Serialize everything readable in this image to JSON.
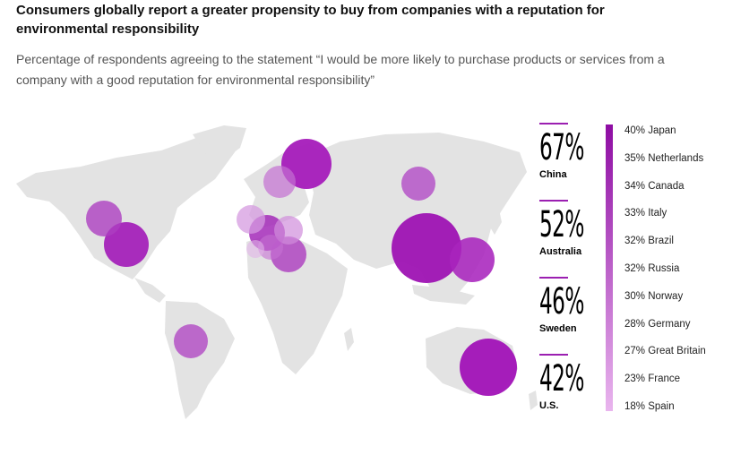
{
  "title": "Consumers globally report a greater propensity to buy from companies with a reputation for environmental responsibility",
  "subtitle": "Percentage of respondents agreeing to the statement “I would be more likely to purchase products or services from a company with a good reputation for environmental responsibility”",
  "highlights": [
    {
      "pct": "67%",
      "country": "China"
    },
    {
      "pct": "52%",
      "country": "Australia"
    },
    {
      "pct": "46%",
      "country": "Sweden"
    },
    {
      "pct": "42%",
      "country": "U.S."
    }
  ],
  "chart_data": {
    "type": "bubble-map",
    "categories": [
      "China",
      "Australia",
      "Sweden",
      "U.S.",
      "Japan",
      "Netherlands",
      "Canada",
      "Italy",
      "Brazil",
      "Russia",
      "Norway",
      "Germany",
      "Great Britain",
      "France",
      "Spain"
    ],
    "values": [
      67,
      52,
      46,
      42,
      40,
      35,
      34,
      33,
      32,
      32,
      30,
      28,
      27,
      23,
      18
    ],
    "legend_entries": [
      "40% Japan",
      "35% Netherlands",
      "34% Canada",
      "33% Italy",
      "32% Brazil",
      "32% Russia",
      "30% Norway",
      "28% Germany",
      "27% Great Britain",
      "23% France",
      "18% Spain"
    ],
    "colors": {
      "high": "#8e0ca3",
      "low": "#e9b5ee",
      "land": "#e3e3e3"
    }
  }
}
